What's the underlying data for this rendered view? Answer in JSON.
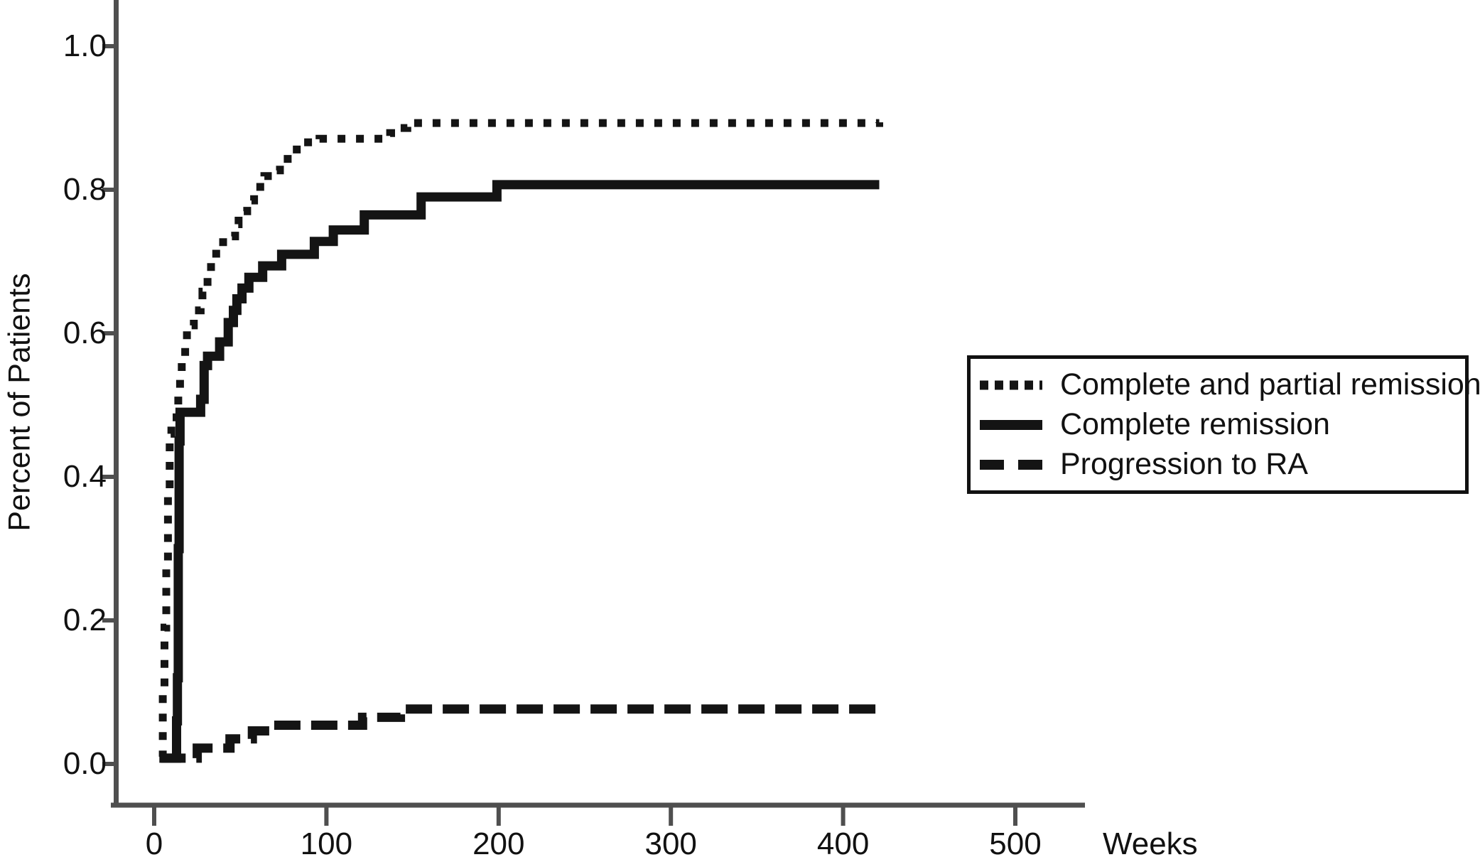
{
  "figure": {
    "background": "#ffffff",
    "axis_color": "#4f4f4f",
    "curve_color": "#141414",
    "text_color": "#111111"
  },
  "legend": {
    "position": "right-center",
    "items": [
      {
        "label": "Complete and partial remission",
        "style": "dotted"
      },
      {
        "label": "Complete remission",
        "style": "solid"
      },
      {
        "label": "Progression to RA",
        "style": "dashed"
      }
    ]
  },
  "chart_data": {
    "type": "line",
    "subtype": "kaplan-meier-step",
    "title": "",
    "xlabel": "Weeks",
    "ylabel": "Percent of Patients",
    "xlim": [
      0,
      543
    ],
    "ylim": [
      0,
      1.08
    ],
    "grid": false,
    "legend_position": "right",
    "x_ticks": [
      {
        "label": "0",
        "value": 0
      },
      {
        "label": "100",
        "value": 100
      },
      {
        "label": "200",
        "value": 200
      },
      {
        "label": "300",
        "value": 300
      },
      {
        "label": "400",
        "value": 400
      },
      {
        "label": "500",
        "value": 500
      }
    ],
    "y_ticks": [
      {
        "label": "0.0",
        "value": 0.0
      },
      {
        "label": "0.2",
        "value": 0.2
      },
      {
        "label": "0.4",
        "value": 0.4
      },
      {
        "label": "0.6",
        "value": 0.6
      },
      {
        "label": "0.8",
        "value": 0.8
      },
      {
        "label": "1.0",
        "value": 1.0
      }
    ],
    "series": [
      {
        "name": "Progression to RA",
        "style": "dashed",
        "points": [
          [
            3,
            0.008
          ],
          [
            24,
            0.008
          ],
          [
            25,
            0.022
          ],
          [
            43,
            0.022
          ],
          [
            44,
            0.035
          ],
          [
            56,
            0.035
          ],
          [
            57,
            0.046
          ],
          [
            66,
            0.046
          ],
          [
            67,
            0.054
          ],
          [
            120,
            0.054
          ],
          [
            121,
            0.065
          ],
          [
            141,
            0.065
          ],
          [
            143,
            0.0765
          ],
          [
            421,
            0.0765
          ]
        ]
      },
      {
        "name": "Complete remission",
        "style": "solid",
        "points": [
          [
            4,
            0.008
          ],
          [
            13,
            0.008
          ],
          [
            13,
            0.06
          ],
          [
            13.5,
            0.12
          ],
          [
            14,
            0.2
          ],
          [
            14,
            0.3
          ],
          [
            14.5,
            0.4
          ],
          [
            14.5,
            0.45
          ],
          [
            15,
            0.49
          ],
          [
            26,
            0.49
          ],
          [
            27,
            0.508
          ],
          [
            29,
            0.508
          ],
          [
            29,
            0.555
          ],
          [
            31,
            0.568
          ],
          [
            38,
            0.568
          ],
          [
            38,
            0.588
          ],
          [
            42,
            0.588
          ],
          [
            43,
            0.615
          ],
          [
            45,
            0.615
          ],
          [
            46,
            0.632
          ],
          [
            48,
            0.648
          ],
          [
            51,
            0.663
          ],
          [
            55,
            0.678
          ],
          [
            63,
            0.694
          ],
          [
            74,
            0.71
          ],
          [
            93,
            0.728
          ],
          [
            104,
            0.744
          ],
          [
            122,
            0.765
          ],
          [
            155,
            0.79
          ],
          [
            199,
            0.807
          ],
          [
            421,
            0.807
          ]
        ]
      },
      {
        "name": "Complete and partial remission",
        "style": "dotted",
        "points": [
          [
            4,
            0.01
          ],
          [
            5,
            0.05
          ],
          [
            5,
            0.1
          ],
          [
            6,
            0.14
          ],
          [
            6,
            0.19
          ],
          [
            7,
            0.23
          ],
          [
            7,
            0.28
          ],
          [
            8,
            0.33
          ],
          [
            8,
            0.38
          ],
          [
            9,
            0.42
          ],
          [
            9,
            0.46
          ],
          [
            10,
            0.475
          ],
          [
            13,
            0.49
          ],
          [
            14,
            0.517
          ],
          [
            15,
            0.54
          ],
          [
            16,
            0.566
          ],
          [
            18,
            0.589
          ],
          [
            19,
            0.611
          ],
          [
            23,
            0.632
          ],
          [
            27,
            0.645
          ],
          [
            28,
            0.658
          ],
          [
            31,
            0.683
          ],
          [
            33,
            0.705
          ],
          [
            36,
            0.72
          ],
          [
            40,
            0.735
          ],
          [
            47,
            0.752
          ],
          [
            49,
            0.77
          ],
          [
            54,
            0.785
          ],
          [
            58,
            0.804
          ],
          [
            64,
            0.819
          ],
          [
            66,
            0.827
          ],
          [
            73,
            0.843
          ],
          [
            80,
            0.856
          ],
          [
            87,
            0.866
          ],
          [
            96,
            0.871
          ],
          [
            135,
            0.872
          ],
          [
            137,
            0.879
          ],
          [
            140,
            0.886
          ],
          [
            147,
            0.893
          ],
          [
            421,
            0.894
          ]
        ]
      }
    ]
  }
}
